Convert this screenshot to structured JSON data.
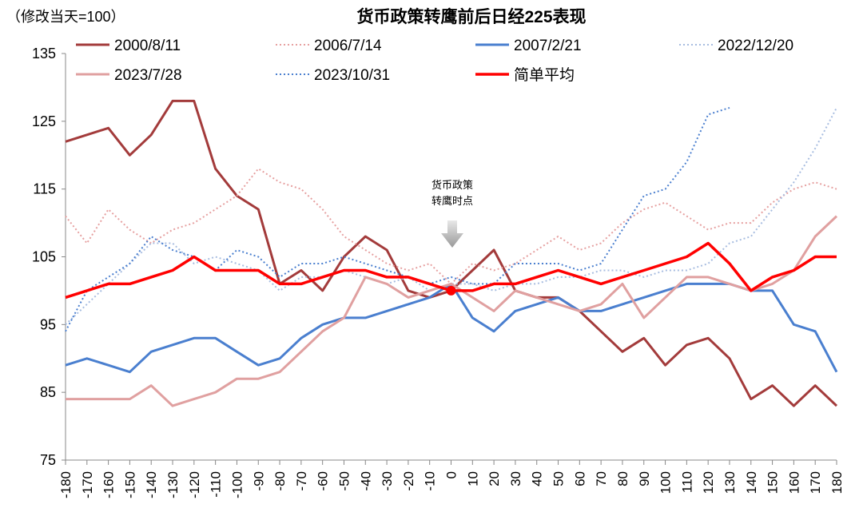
{
  "chart_data": {
    "type": "line",
    "title": "货币政策转鹰前后日经225表现",
    "ylabel": "（修改当天=100）",
    "annotation": [
      "货币政策",
      "转鹰时点"
    ],
    "ylim": [
      75,
      135
    ],
    "yticks": [
      75,
      85,
      95,
      105,
      115,
      125,
      135
    ],
    "xlim": [
      -180,
      180
    ],
    "x": [
      -180,
      -170,
      -160,
      -150,
      -140,
      -130,
      -120,
      -110,
      -100,
      -90,
      -80,
      -70,
      -60,
      -50,
      -40,
      -30,
      -20,
      -10,
      0,
      10,
      20,
      30,
      40,
      50,
      60,
      70,
      80,
      90,
      100,
      110,
      120,
      130,
      140,
      150,
      160,
      170,
      180
    ],
    "xtick_labels": [
      "-180",
      "-170",
      "-160",
      "-150",
      "-140",
      "-130",
      "-120",
      "-110",
      "-100",
      "-90",
      "-80",
      "-70",
      "-60",
      "-50",
      "-40",
      "-30",
      "-20",
      "-10",
      "0",
      "10",
      "20",
      "30",
      "40",
      "50",
      "60",
      "70",
      "80",
      "90",
      "100",
      "110",
      "120",
      "130",
      "140",
      "150",
      "160",
      "170",
      "180"
    ],
    "legend_placement": "top",
    "series": [
      {
        "name": "2000/8/11",
        "color": "#a33b3b",
        "style": "solid",
        "width": 3,
        "values": [
          122,
          123,
          124,
          120,
          123,
          128,
          128,
          118,
          114,
          112,
          101,
          103,
          100,
          105,
          108,
          106,
          100,
          99,
          100,
          103,
          106,
          100,
          99,
          99,
          97,
          94,
          91,
          93,
          89,
          92,
          93,
          90,
          84,
          86,
          83,
          86,
          83
        ]
      },
      {
        "name": "2006/7/14",
        "color": "#e6a0a0",
        "style": "dotted",
        "width": 2,
        "values": [
          111,
          107,
          112,
          109,
          107,
          109,
          110,
          112,
          114,
          118,
          116,
          115,
          112,
          108,
          106,
          104,
          103,
          104,
          101,
          104,
          103,
          104,
          106,
          108,
          106,
          107,
          110,
          112,
          113,
          111,
          109,
          110,
          110,
          113,
          115,
          116,
          115
        ]
      },
      {
        "name": "2007/2/21",
        "color": "#4a7fcf",
        "style": "solid",
        "width": 3,
        "values": [
          89,
          90,
          89,
          88,
          91,
          92,
          93,
          93,
          91,
          89,
          90,
          93,
          95,
          96,
          96,
          97,
          98,
          99,
          101,
          96,
          94,
          97,
          98,
          99,
          97,
          97,
          98,
          99,
          100,
          101,
          101,
          101,
          100,
          100,
          95,
          94,
          88
        ]
      },
      {
        "name": "2022/12/20",
        "color": "#a8bde0",
        "style": "dotted",
        "width": 2,
        "values": [
          95,
          98,
          101,
          104,
          107,
          107,
          104,
          105,
          104,
          103,
          100,
          102,
          102,
          103,
          102,
          101,
          102,
          100,
          101,
          101,
          100,
          101,
          101,
          102,
          102,
          103,
          103,
          102,
          103,
          103,
          104,
          107,
          108,
          112,
          116,
          121,
          127
        ]
      },
      {
        "name": "2023/7/28",
        "color": "#e0a0a0",
        "style": "solid",
        "width": 3,
        "values": [
          84,
          84,
          84,
          84,
          86,
          83,
          84,
          85,
          87,
          87,
          88,
          91,
          94,
          96,
          102,
          101,
          99,
          100,
          101,
          99,
          97,
          100,
          99,
          98,
          97,
          98,
          101,
          96,
          99,
          102,
          102,
          101,
          100,
          101,
          103,
          108,
          111
        ]
      },
      {
        "name": "2023/10/31",
        "color": "#4a7fcf",
        "style": "dotted",
        "width": 2,
        "values": [
          94,
          100,
          102,
          104,
          108,
          106,
          105,
          103,
          106,
          105,
          102,
          104,
          104,
          105,
          104,
          103,
          102,
          101,
          102,
          101,
          101,
          104,
          104,
          104,
          103,
          104,
          109,
          114,
          115,
          119,
          126,
          127,
          null,
          null,
          null,
          null,
          null
        ]
      },
      {
        "name": "简单平均",
        "color": "#ff0000",
        "style": "solid",
        "width": 3.5,
        "values": [
          99,
          100,
          101,
          101,
          102,
          103,
          105,
          103,
          103,
          103,
          101,
          101,
          102,
          103,
          103,
          102,
          102,
          101,
          100,
          100,
          101,
          101,
          102,
          103,
          102,
          101,
          102,
          103,
          104,
          105,
          107,
          104,
          100,
          102,
          103,
          105,
          105
        ]
      }
    ]
  }
}
